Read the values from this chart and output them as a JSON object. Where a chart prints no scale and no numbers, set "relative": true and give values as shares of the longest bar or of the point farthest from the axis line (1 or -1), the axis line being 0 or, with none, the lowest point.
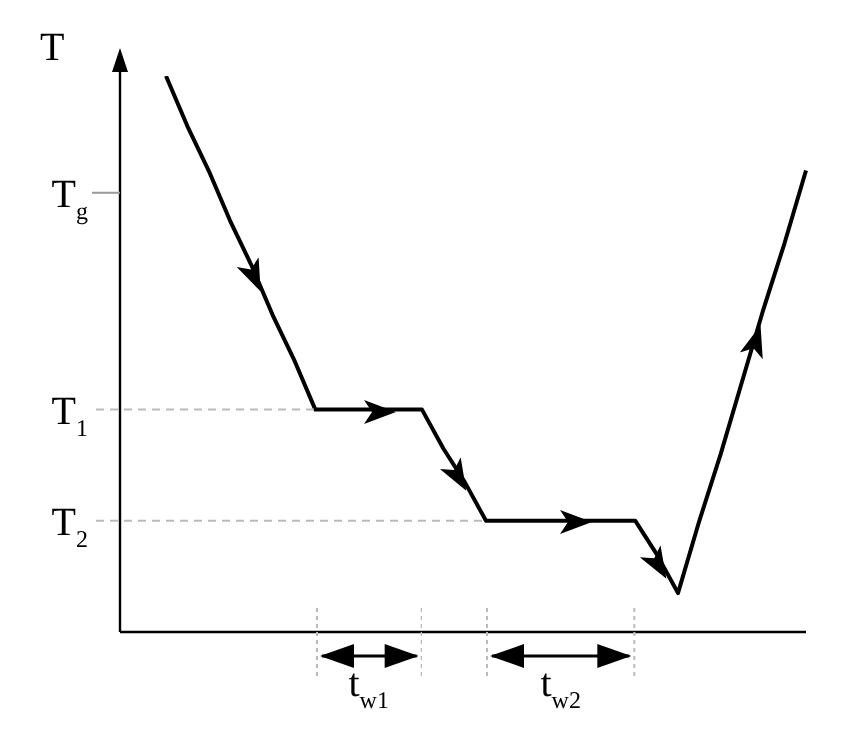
{
  "chart_data": {
    "type": "line",
    "relative": true,
    "ylabel": "T",
    "marker": "none",
    "line_style": "solid",
    "categories": [
      null,
      null,
      null,
      null,
      null,
      null,
      null,
      null,
      null,
      null,
      null,
      null,
      null,
      null,
      null,
      null,
      null,
      null,
      null,
      null,
      null,
      null,
      null,
      null,
      null,
      null,
      null,
      null,
      null,
      null,
      null
    ],
    "series": [
      {
        "color": "#000000",
        "values": [
          1.0,
          0.91,
          0.83,
          0.74,
          0.66,
          0.57,
          0.49,
          0.4,
          0.4,
          0.4,
          0.4,
          0.4,
          0.4,
          0.33,
          0.27,
          0.2,
          0.2,
          0.2,
          0.2,
          0.2,
          0.2,
          0.2,
          0.2,
          0.14,
          0.07,
          0.2,
          0.32,
          0.45,
          0.58,
          0.7,
          0.83
        ]
      }
    ],
    "ref_lines": [
      {
        "axis": "y",
        "value": 0.79,
        "label": "T$_{g}$",
        "line_style": "solid",
        "color": "#999999"
      },
      {
        "axis": "y",
        "value": 0.4,
        "label": "T$_{1}$",
        "line_style": "dashed",
        "color": "#bbbbbb"
      },
      {
        "axis": "y",
        "value": 0.2,
        "label": "T$_{2}$",
        "line_style": "dashed",
        "color": "#bbbbbb"
      }
    ],
    "annotations": [
      "t$_{w1}$",
      "t$_{w2}$"
    ]
  }
}
